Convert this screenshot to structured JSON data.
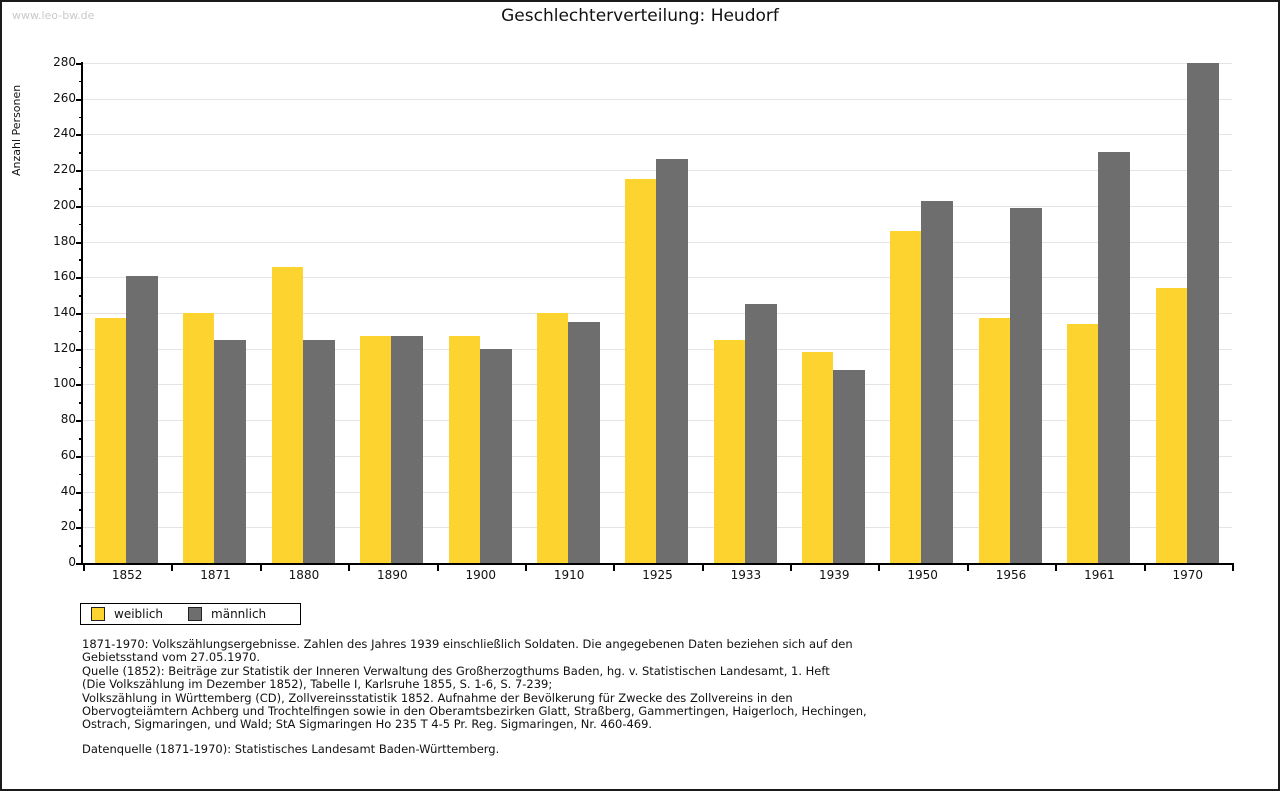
{
  "page": {
    "watermark": "www.leo-bw.de",
    "title": "Geschlechterverteilung: Heudorf"
  },
  "chart_data": {
    "type": "bar",
    "title": "Geschlechterverteilung: Heudorf",
    "xlabel": "",
    "ylabel": "Anzahl Personen",
    "categories": [
      "1852",
      "1871",
      "1880",
      "1890",
      "1900",
      "1910",
      "1925",
      "1933",
      "1939",
      "1950",
      "1956",
      "1961",
      "1970"
    ],
    "series": [
      {
        "name": "weiblich",
        "color": "#fdd32f",
        "values": [
          137,
          140,
          166,
          127,
          127,
          140,
          215,
          125,
          118,
          186,
          137,
          134,
          154
        ]
      },
      {
        "name": "männlich",
        "color": "#6e6e6e",
        "values": [
          161,
          125,
          125,
          127,
          120,
          135,
          226,
          145,
          108,
          203,
          199,
          230,
          280
        ]
      }
    ],
    "ylim": [
      0,
      280
    ],
    "ytick_step": 20,
    "yminor_step": 10,
    "grid": true,
    "gridline_color": "#e4e4e4",
    "legend_position": "bottom-left"
  },
  "footnotes": {
    "lines": [
      "1871-1970: Volkszählungsergebnisse. Zahlen des Jahres 1939 einschließlich Soldaten. Die angegebenen Daten beziehen sich auf den",
      "Gebietsstand vom 27.05.1970.",
      "Quelle (1852): Beiträge zur Statistik der Inneren Verwaltung des Großherzogthums Baden, hg. v. Statistischen Landesamt, 1. Heft",
      "(Die Volkszählung im Dezember 1852), Tabelle I, Karlsruhe 1855, S. 1-6, S. 7-239;",
      "Volkszählung in Württemberg (CD), Zollvereinsstatistik 1852. Aufnahme der Bevölkerung für Zwecke des Zollvereins in den",
      "Obervogteiämtern Achberg und Trochtelfingen sowie in den Oberamtsbezirken Glatt, Straßberg, Gammertingen, Haigerloch, Hechingen,",
      "Ostrach, Sigmaringen, und Wald; StA Sigmaringen Ho 235 T 4-5 Pr. Reg. Sigmaringen, Nr. 460-469."
    ],
    "datasource": "Datenquelle (1871-1970): Statistisches Landesamt Baden-Württemberg."
  }
}
